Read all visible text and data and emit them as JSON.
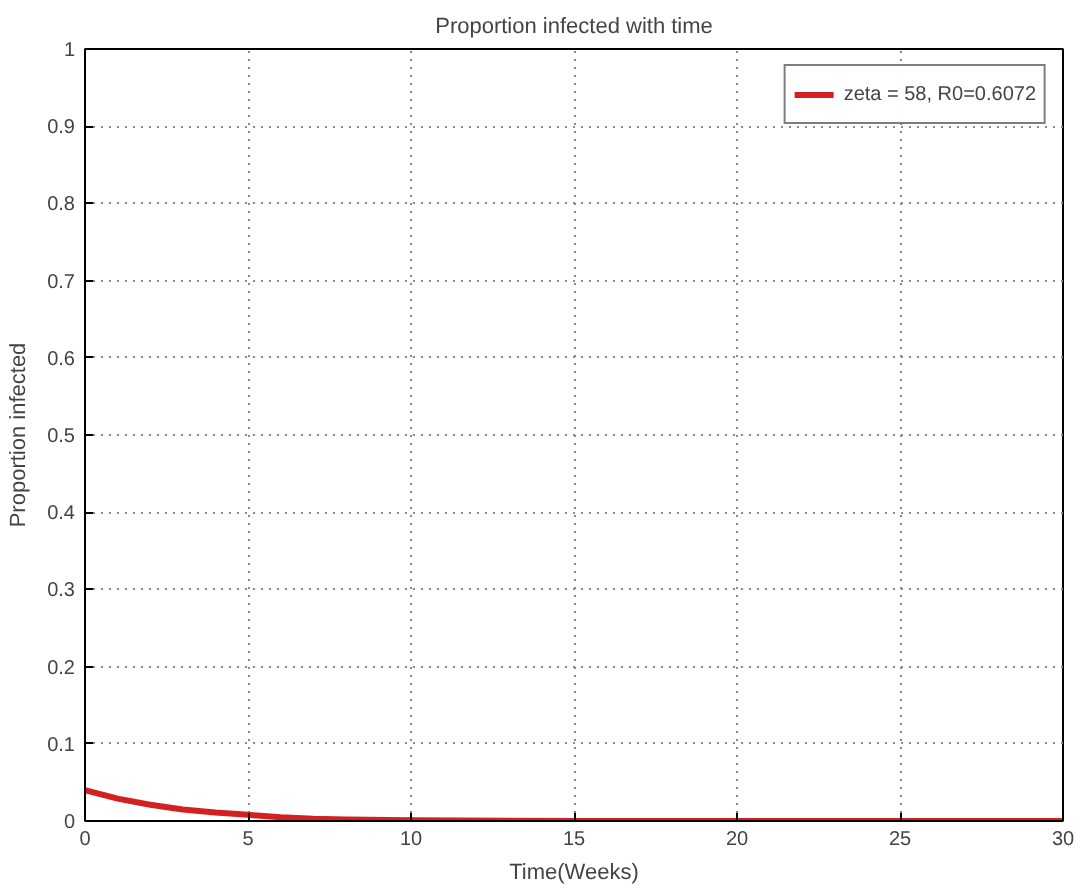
{
  "chart_data": {
    "type": "line",
    "title": "Proportion infected with time",
    "xlabel": "Time(Weeks)",
    "ylabel": "Proportion infected",
    "series": [
      {
        "name": "zeta = 58, R0=0.6072",
        "color": "#d42020",
        "x": [
          0,
          1,
          2,
          3,
          4,
          5,
          6,
          7,
          8,
          10,
          15,
          20,
          25,
          30
        ],
        "values": [
          0.04,
          0.029,
          0.021,
          0.015,
          0.011,
          0.008,
          0.005,
          0.003,
          0.002,
          0.001,
          0,
          0,
          0,
          0
        ]
      }
    ],
    "xlim": [
      0,
      30
    ],
    "ylim": [
      0,
      1
    ],
    "xticks": [
      0,
      5,
      10,
      15,
      20,
      25,
      30
    ],
    "yticks": [
      0,
      0.1,
      0.2,
      0.3,
      0.4,
      0.5,
      0.6,
      0.7,
      0.8,
      0.9,
      1
    ],
    "grid": true,
    "legend": "top right",
    "line_style": "solid",
    "marker": "none"
  }
}
